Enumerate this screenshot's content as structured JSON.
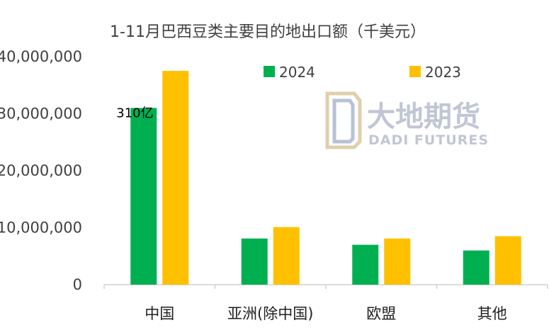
{
  "chart_data": {
    "type": "bar",
    "title": "1-11月巴西豆类主要目的地出口额（千美元）",
    "categories": [
      "中国",
      "亚洲(除中国)",
      "欧盟",
      "其他"
    ],
    "series": [
      {
        "name": "2024",
        "color": "#00b050",
        "values": [
          31000000,
          8100000,
          7000000,
          6000000
        ]
      },
      {
        "name": "2023",
        "color": "#ffc000",
        "values": [
          37500000,
          10100000,
          8100000,
          8500000
        ]
      }
    ],
    "ylim": [
      0,
      40000000
    ],
    "yticks": [
      0,
      10000000,
      20000000,
      30000000,
      40000000
    ],
    "ytick_labels": [
      "0",
      "10,000,000",
      "20,000,000",
      "30,000,000",
      "40,000,000"
    ],
    "xlabel": "",
    "ylabel": "",
    "grid": false,
    "legend_position": "top",
    "annotations": [
      {
        "text": "310亿",
        "category": "中国",
        "series": "2024"
      }
    ]
  },
  "watermark": {
    "cn": "大地期货",
    "en": "DADI FUTURES",
    "icon": "dadi-logo-icon"
  }
}
